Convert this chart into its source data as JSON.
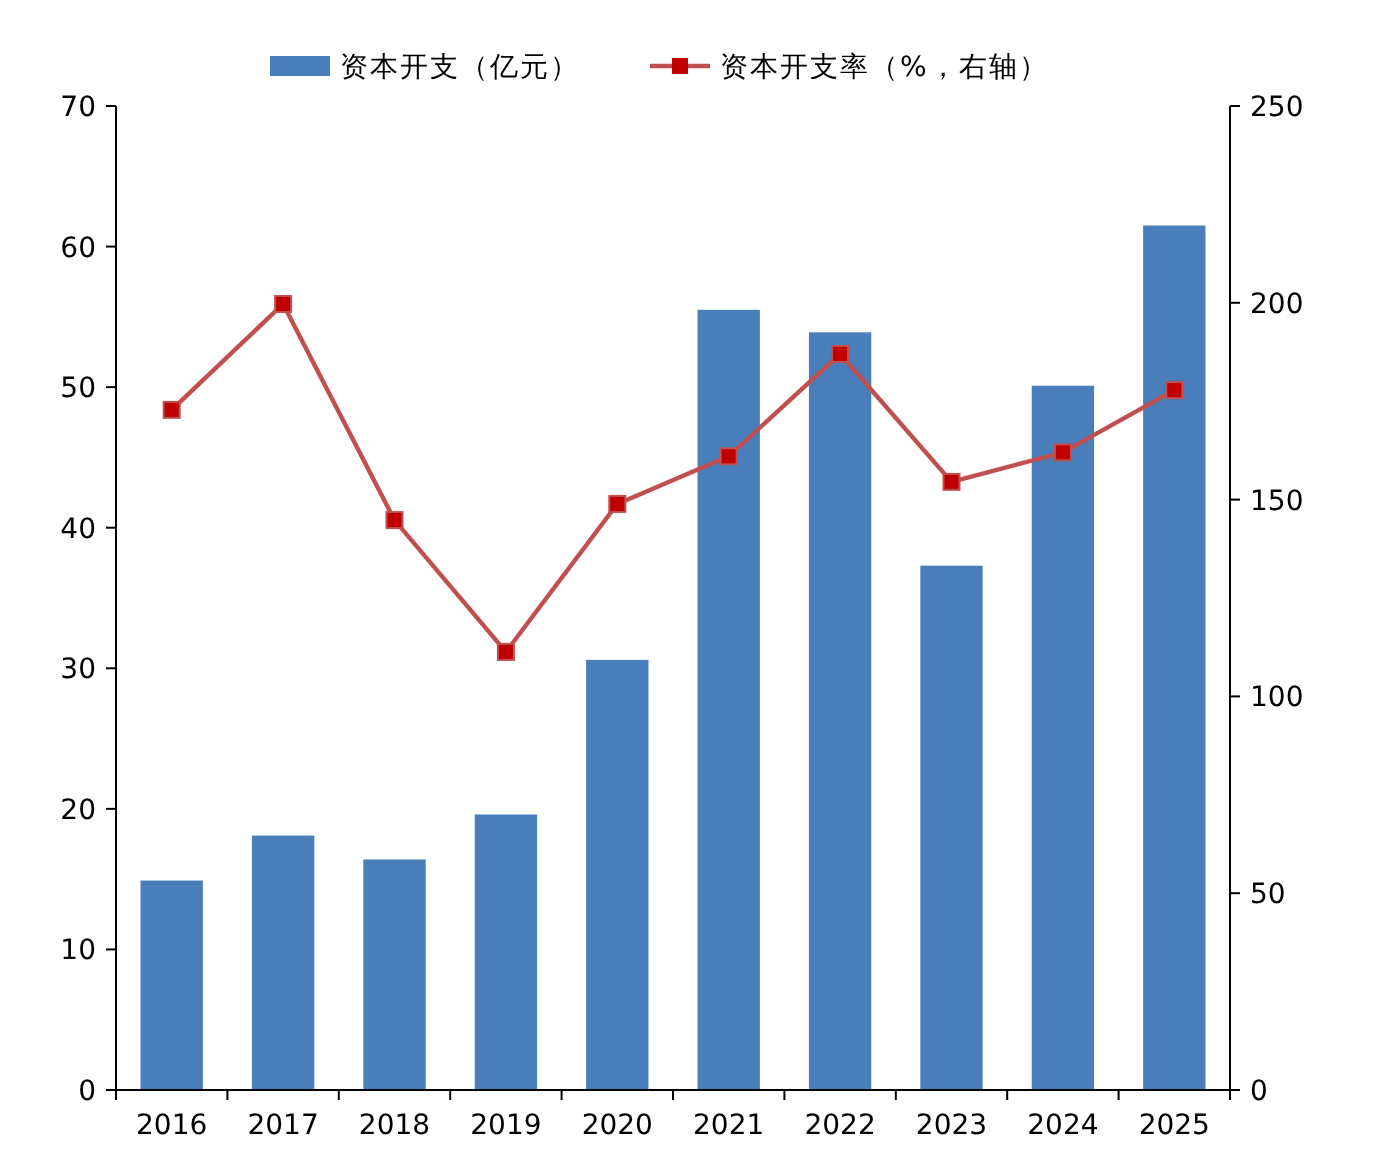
{
  "chart_data": {
    "type": "bar",
    "categories": [
      "2016",
      "2017",
      "2018",
      "2019",
      "2020",
      "2021",
      "2022",
      "2023",
      "2024",
      "2025"
    ],
    "series": [
      {
        "name": "资本开支（亿元）",
        "color": "#4a7ebb",
        "values": [
          14.9,
          18.1,
          16.4,
          19.6,
          30.6,
          55.5,
          53.9,
          37.3,
          50.1,
          61.5
        ]
      },
      {
        "name": "资本开支率（%，右轴）",
        "type": "line",
        "axis": "y2",
        "color": "#c0504d",
        "marker": "square",
        "values": [
          172.8,
          199.7,
          144.8,
          111.3,
          148.9,
          161,
          187,
          154.5,
          162,
          177.8
        ]
      }
    ],
    "ylim": [
      0,
      70
    ],
    "yticks": [
      0,
      10,
      20,
      30,
      40,
      50,
      60,
      70
    ],
    "y2lim": [
      0,
      250
    ],
    "y2ticks": [
      0,
      50,
      100,
      150,
      200,
      250
    ],
    "legend": "top",
    "grid": false
  }
}
